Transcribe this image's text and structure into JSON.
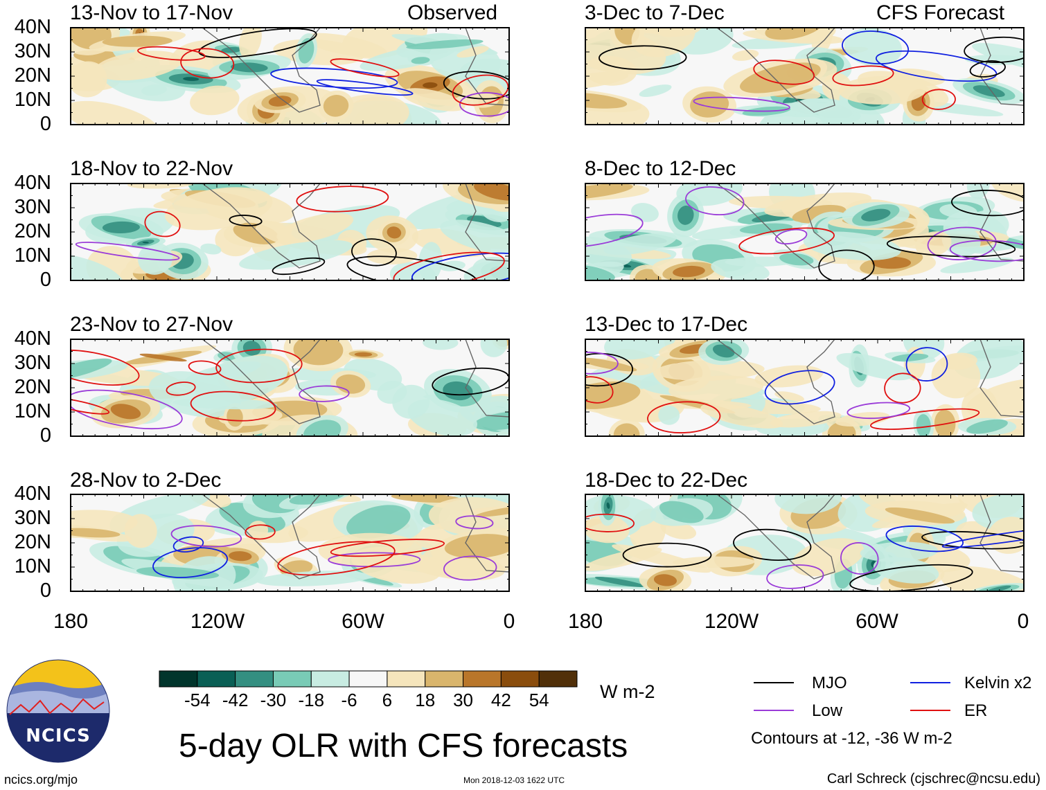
{
  "header": {
    "observed_label": "Observed",
    "forecast_label": "CFS Forecast"
  },
  "panels": [
    {
      "title": "13-Nov to 17-Nov",
      "column": "left",
      "row": 0
    },
    {
      "title": "18-Nov to 22-Nov",
      "column": "left",
      "row": 1
    },
    {
      "title": "23-Nov to 27-Nov",
      "column": "left",
      "row": 2
    },
    {
      "title": "28-Nov to 2-Dec",
      "column": "left",
      "row": 3
    },
    {
      "title": "3-Dec to 7-Dec",
      "column": "right",
      "row": 0
    },
    {
      "title": "8-Dec to 12-Dec",
      "column": "right",
      "row": 1
    },
    {
      "title": "13-Dec to 17-Dec",
      "column": "right",
      "row": 2
    },
    {
      "title": "18-Dec to 22-Dec",
      "column": "right",
      "row": 3
    }
  ],
  "axes": {
    "lat_ticks": [
      "40N",
      "30N",
      "20N",
      "10N",
      "0"
    ],
    "lon_ticks": [
      "180",
      "120W",
      "60W",
      "0"
    ]
  },
  "colorbar": {
    "labels": [
      "-54",
      "-42",
      "-30",
      "-18",
      "-6",
      "6",
      "18",
      "30",
      "42",
      "54"
    ],
    "colors": [
      "#01352c",
      "#0a5f55",
      "#348f81",
      "#79cbb6",
      "#c8ece2",
      "#f7f7f7",
      "#f5e5bc",
      "#d9b56c",
      "#b9762a",
      "#8a4d0d",
      "#513009"
    ],
    "units": "W m-2"
  },
  "legend": {
    "items": [
      {
        "label": "MJO",
        "color": "#000000"
      },
      {
        "label": "Kelvin x2",
        "color": "#1020e0"
      },
      {
        "label": "Low",
        "color": "#9a3bd8"
      },
      {
        "label": "ER",
        "color": "#e01010"
      }
    ],
    "note": "Contours at -12, -36 W m-2"
  },
  "title": "5-day OLR with CFS forecasts",
  "footer": {
    "left": "ncics.org/mjo",
    "middle": "Mon 2018-12-03 1622 UTC",
    "right": "Carl Schreck (cjschrec@ncsu.edu)"
  },
  "logo": {
    "text": "NCICS"
  }
}
